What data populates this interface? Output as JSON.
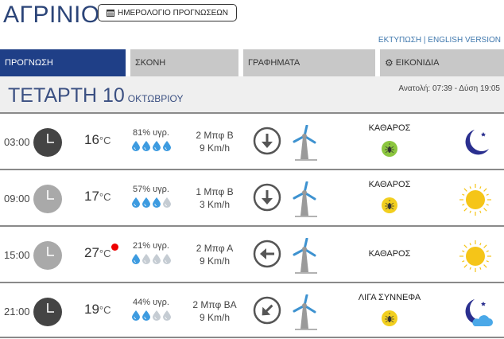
{
  "header": {
    "title": "ΑΓΡΙΝΙΟ",
    "calendar_button": "ΗΜΕΡΟΛΟΓΙΟ ΠΡΟΓΝΩΣΕΩΝ",
    "print_link": "ΕΚΤΥΠΩΣΗ",
    "separator": " | ",
    "english_link": "ENGLISH VERSION"
  },
  "tabs": [
    {
      "label": "ΠΡΟΓΝΩΣΗ",
      "active": true
    },
    {
      "label": "ΣΚΟΝΗ"
    },
    {
      "label": "ΓΡΑΦΗΜΑΤΑ"
    },
    {
      "label": "ΕΙΚΟΝΙΔΙΑ",
      "icon": "gear-icon"
    }
  ],
  "date": {
    "day": "ΤΕΤΑΡΤΗ 10",
    "month": "ΟΚΤΩΒΡΙΟΥ",
    "sun": "Ανατολή: 07:39  - Δύση 19:05"
  },
  "colors": {
    "accent": "#1f3f87",
    "drop_on": "#3d9be0",
    "drop_off": "#c5ccd3",
    "bug_green": "#8cc63f",
    "bug_yellow": "#f2cf1f",
    "moon": "#2a2f8f",
    "sun": "#f5c518"
  },
  "rows": [
    {
      "time": "03:00",
      "clock": "dark",
      "temp": "16",
      "unit": "°C",
      "hot": false,
      "humidity": "81% υγρ.",
      "drops": 4,
      "wind": "2 Μπφ Β",
      "speed": "9 Km/h",
      "arrow": "down",
      "condition": "ΚΑΘΑΡΟΣ",
      "bug": "green",
      "icon": "moon"
    },
    {
      "time": "09:00",
      "clock": "light",
      "temp": "17",
      "unit": "°C",
      "hot": false,
      "humidity": "57% υγρ.",
      "drops": 3,
      "wind": "1 Μπφ Β",
      "speed": "3 Km/h",
      "arrow": "down",
      "condition": "ΚΑΘΑΡΟΣ",
      "bug": "yellow",
      "icon": "sun"
    },
    {
      "time": "15:00",
      "clock": "light",
      "temp": "27",
      "unit": "°C",
      "hot": true,
      "humidity": "21% υγρ.",
      "drops": 1,
      "wind": "2 Μπφ Α",
      "speed": "9 Km/h",
      "arrow": "left",
      "condition": "ΚΑΘΑΡΟΣ",
      "bug": null,
      "icon": "sun"
    },
    {
      "time": "21:00",
      "clock": "dark",
      "temp": "19",
      "unit": "°C",
      "hot": false,
      "humidity": "44% υγρ.",
      "drops": 2,
      "wind": "2 Μπφ ΒΑ",
      "speed": "9 Km/h",
      "arrow": "down-left",
      "condition": "ΛΙΓΑ ΣΥΝΝΕΦΑ",
      "bug": "yellow",
      "icon": "moon-cloud"
    }
  ]
}
